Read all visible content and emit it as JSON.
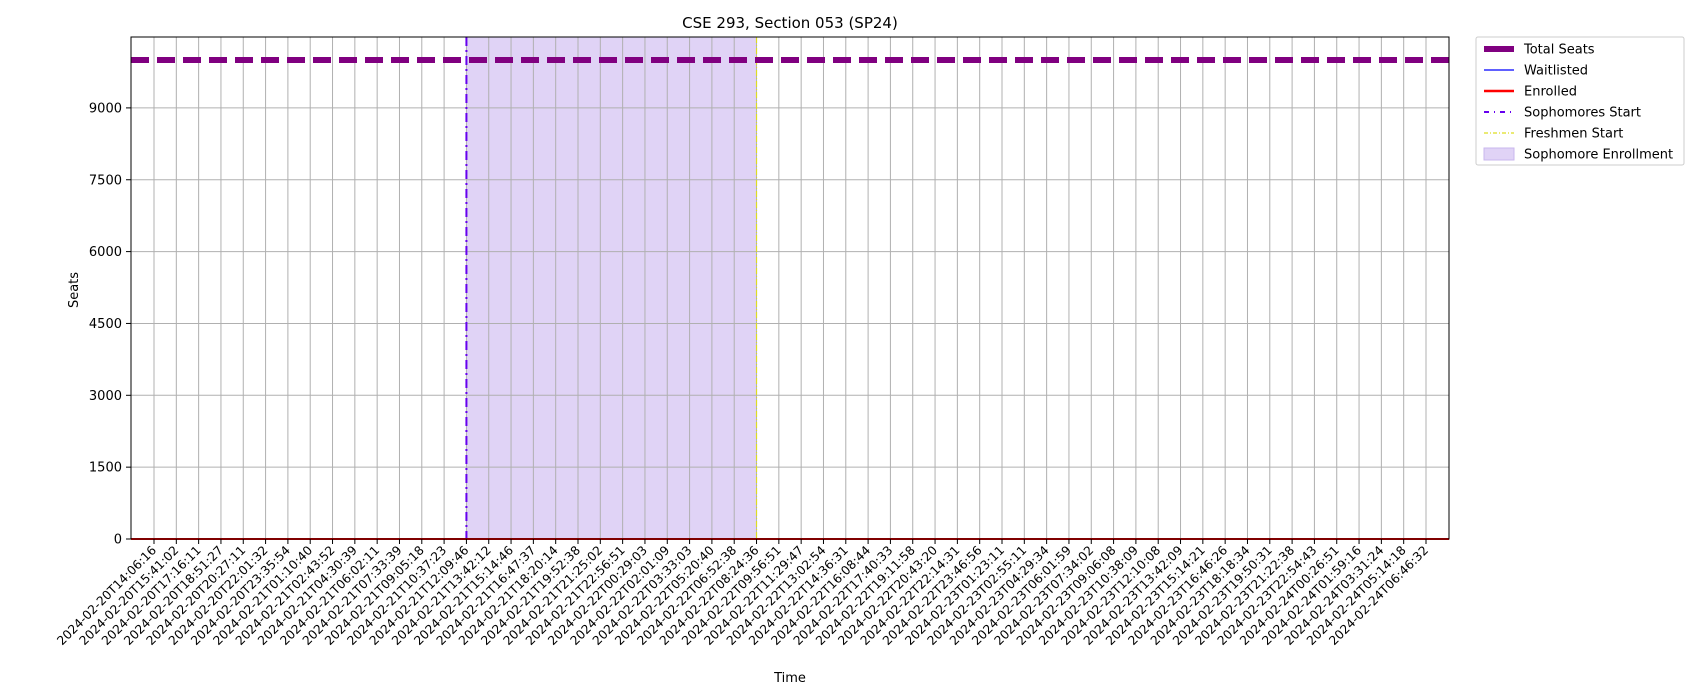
{
  "chart_data": {
    "type": "line",
    "title": "CSE 293, Section 053 (SP24)",
    "xlabel": "Time",
    "ylabel": "Seats",
    "ylim": [
      0,
      10000
    ],
    "y_ticks": [
      0,
      1500,
      3000,
      4500,
      6000,
      7500,
      9000
    ],
    "grid": true,
    "legend_position": "outside-top-right",
    "x": [
      "2024-02-20T14:06:16",
      "2024-02-20T15:41:02",
      "2024-02-20T17:16:11",
      "2024-02-20T18:51:27",
      "2024-02-20T20:27:11",
      "2024-02-20T22:01:32",
      "2024-02-20T23:35:54",
      "2024-02-21T01:10:40",
      "2024-02-21T02:43:52",
      "2024-02-21T04:30:39",
      "2024-02-21T06:02:11",
      "2024-02-21T07:33:39",
      "2024-02-21T09:05:18",
      "2024-02-21T10:37:23",
      "2024-02-21T12:09:46",
      "2024-02-21T13:42:12",
      "2024-02-21T15:14:46",
      "2024-02-21T16:47:37",
      "2024-02-21T18:20:14",
      "2024-02-21T19:52:38",
      "2024-02-21T21:25:02",
      "2024-02-21T22:56:51",
      "2024-02-22T00:29:03",
      "2024-02-22T02:01:09",
      "2024-02-22T03:33:03",
      "2024-02-22T05:20:40",
      "2024-02-22T06:52:38",
      "2024-02-22T08:24:36",
      "2024-02-22T09:56:51",
      "2024-02-22T11:29:47",
      "2024-02-22T13:02:54",
      "2024-02-22T14:36:31",
      "2024-02-22T16:08:44",
      "2024-02-22T17:40:33",
      "2024-02-22T19:11:58",
      "2024-02-22T20:43:20",
      "2024-02-22T22:14:31",
      "2024-02-22T23:46:56",
      "2024-02-23T01:23:11",
      "2024-02-23T02:55:11",
      "2024-02-23T04:29:34",
      "2024-02-23T06:01:59",
      "2024-02-23T07:34:02",
      "2024-02-23T09:06:08",
      "2024-02-23T10:38:09",
      "2024-02-23T12:10:08",
      "2024-02-23T13:42:09",
      "2024-02-23T15:14:21",
      "2024-02-23T16:46:26",
      "2024-02-23T18:18:34",
      "2024-02-23T19:50:31",
      "2024-02-23T21:22:38",
      "2024-02-23T22:54:43",
      "2024-02-24T00:26:51",
      "2024-02-24T01:59:16",
      "2024-02-24T03:31:24",
      "2024-02-24T05:14:18",
      "2024-02-24T06:46:32"
    ],
    "series": [
      {
        "name": "Total Seats",
        "value": 10000,
        "color": "#800080",
        "style": "dashed-thick"
      },
      {
        "name": "Waitlisted",
        "value": 0,
        "color": "#0000ff",
        "style": "solid-thin"
      },
      {
        "name": "Enrolled",
        "value": 0,
        "color": "#ff0000",
        "style": "solid"
      }
    ],
    "markers": [
      {
        "name": "Sophomores Start",
        "x": "2024-02-21T12:09:46",
        "color": "#6600ee",
        "style": "dashdot"
      },
      {
        "name": "Freshmen Start",
        "x": "2024-02-22T08:24:36",
        "color": "#dddd22",
        "style": "dashdot-thin"
      }
    ],
    "spans": [
      {
        "name": "Sophomore Enrollment",
        "x_start": "2024-02-21T12:09:46",
        "x_end": "2024-02-22T08:24:36",
        "color": "#e0d3f6"
      }
    ]
  }
}
